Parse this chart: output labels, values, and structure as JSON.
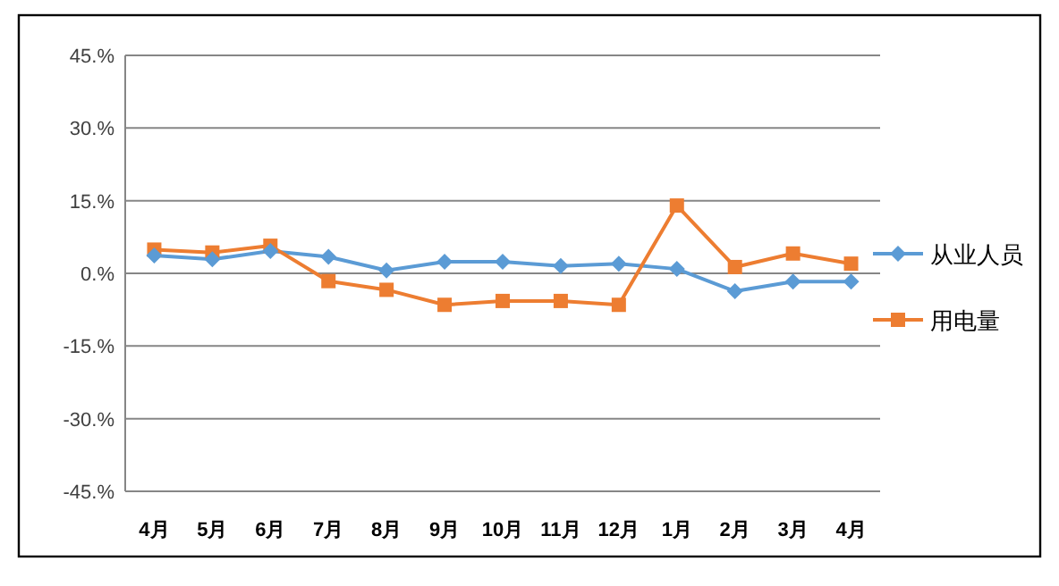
{
  "chart_data": {
    "type": "line",
    "categories": [
      "4月",
      "5月",
      "6月",
      "7月",
      "8月",
      "9月",
      "10月",
      "11月",
      "12月",
      "1月",
      "2月",
      "3月",
      "4月"
    ],
    "series": [
      {
        "name": "从业人员",
        "color": "#5b9bd5",
        "marker": "diamond",
        "values": [
          3.7,
          2.9,
          4.6,
          3.4,
          0.6,
          2.4,
          2.4,
          1.5,
          2.0,
          0.9,
          -3.7,
          -1.7,
          -1.7
        ]
      },
      {
        "name": "用电量",
        "color": "#ed7d31",
        "marker": "square",
        "values": [
          4.9,
          4.3,
          5.7,
          -1.6,
          -3.4,
          -6.5,
          -5.7,
          -5.7,
          -6.5,
          14.0,
          1.3,
          4.1,
          2.0
        ]
      }
    ],
    "ylim": [
      -45,
      45
    ],
    "yticks": [
      {
        "value": 45,
        "label": "45.%"
      },
      {
        "value": 30,
        "label": "30.%"
      },
      {
        "value": 15,
        "label": "15.%"
      },
      {
        "value": 0,
        "label": "0.%"
      },
      {
        "value": -15,
        "label": "-15.%"
      },
      {
        "value": -30,
        "label": "-30.%"
      },
      {
        "value": -45,
        "label": "-45.%"
      }
    ],
    "grid": "y",
    "legend": "right",
    "line_style": "solid"
  }
}
